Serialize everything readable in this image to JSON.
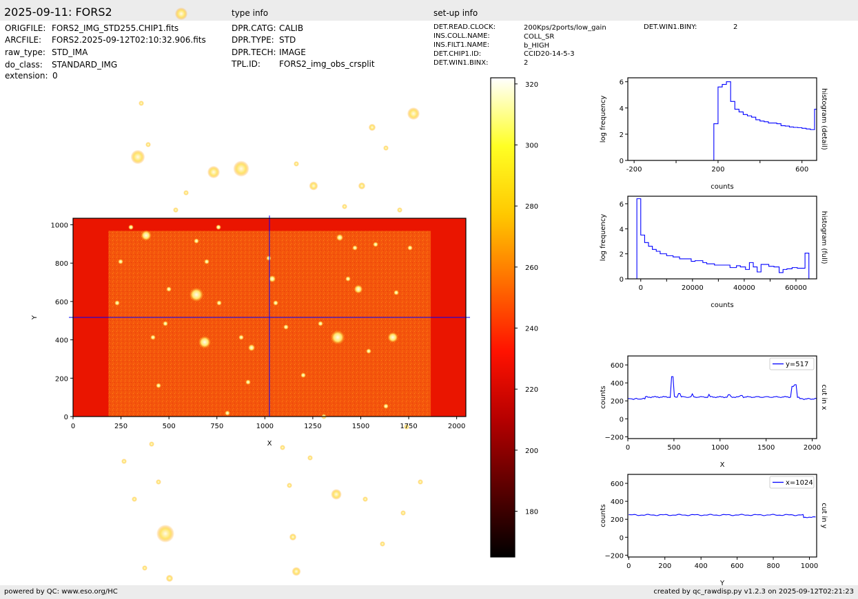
{
  "header": {
    "title": "2025-09-11: FORS2",
    "type_info_heading": "type info",
    "setup_info_heading": "set-up info"
  },
  "file_info": [
    {
      "key": "ORIGFILE:",
      "value": "FORS2_IMG_STD255.CHIP1.fits"
    },
    {
      "key": "ARCFILE:",
      "value": "FORS2.2025-09-12T02:10:32.906.fits"
    },
    {
      "key": "raw_type:",
      "value": "STD_IMA"
    },
    {
      "key": "do_class:",
      "value": "STANDARD_IMG"
    },
    {
      "key": "extension:",
      "value": "0"
    }
  ],
  "type_info": [
    {
      "key": "DPR.CATG:",
      "value": "CALIB"
    },
    {
      "key": "DPR.TYPE:",
      "value": "STD"
    },
    {
      "key": "DPR.TECH:",
      "value": "IMAGE"
    },
    {
      "key": "TPL.ID:",
      "value": "FORS2_img_obs_crsplit"
    }
  ],
  "setup_info": [
    {
      "key": "DET.READ.CLOCK:",
      "value": "200Kps/2ports/low_gain"
    },
    {
      "key": "INS.COLL.NAME:",
      "value": "COLL_SR"
    },
    {
      "key": "INS.FILT1.NAME:",
      "value": "b_HIGH"
    },
    {
      "key": "DET.CHIP1.ID:",
      "value": "CCID20-14-5-3"
    },
    {
      "key": "DET.WIN1.BINX:",
      "value": "2"
    }
  ],
  "setup_info_extra": [
    {
      "key": "DET.WIN1.BINY:",
      "value": "2"
    }
  ],
  "footer": {
    "left": "powered by QC: www.eso.org/HC",
    "right": "created by qc_rawdisp.py v1.2.3 on 2025-09-12T02:21:23"
  },
  "colors": {
    "plot_line": "#0000ff",
    "band": "#ececec",
    "overscan": "#ea1500",
    "sky": "#f4550c",
    "star": "#fffbe8"
  },
  "chart_data": [
    {
      "id": "image",
      "type": "heatmap",
      "xlabel": "X",
      "ylabel": "Y",
      "xlim": [
        0,
        2048
      ],
      "ylim": [
        0,
        1034
      ],
      "xticks": [
        0,
        250,
        500,
        750,
        1000,
        1250,
        1500,
        1750,
        2000
      ],
      "yticks": [
        0,
        200,
        400,
        600,
        800,
        1000
      ],
      "illuminated_region": {
        "x": [
          185,
          1865
        ],
        "y": [
          0,
          968
        ]
      },
      "cut_x": 1024,
      "cut_y": 517,
      "stars": [
        [
          240,
          775,
          10
        ],
        [
          246,
          840,
          4
        ],
        [
          297,
          497,
          7
        ],
        [
          285,
          428,
          8
        ],
        [
          490,
          490,
          8
        ],
        [
          212,
          342,
          6
        ],
        [
          200,
          228,
          8
        ],
        [
          350,
          245,
          9
        ],
        [
          310,
          250,
          7
        ],
        [
          263,
          20,
          7
        ],
        [
          395,
          405,
          4
        ],
        [
          430,
          830,
          5
        ],
        [
          425,
          780,
          4
        ],
        [
          455,
          270,
          5
        ],
        [
          430,
          238,
          3
        ],
        [
          525,
          270,
          4
        ],
        [
          540,
          185,
          4
        ],
        [
          493,
          345,
          4
        ],
        [
          520,
          420,
          5
        ],
        [
          600,
          165,
          7
        ],
        [
          570,
          490,
          6
        ],
        [
          488,
          718,
          6
        ],
        [
          575,
          425,
          3
        ],
        [
          415,
          475,
          3
        ],
        [
          410,
          650,
          3
        ],
        [
          400,
          440,
          3
        ],
        [
          390,
          375,
          3
        ],
        [
          360,
          555,
          3
        ],
        [
          350,
          490,
          3
        ],
        [
          330,
          600,
          3
        ],
        [
          317,
          330,
          3
        ],
        [
          318,
          440,
          3
        ],
        [
          300,
          380,
          3
        ],
        [
          285,
          350,
          3
        ],
        [
          270,
          280,
          3
        ],
        [
          255,
          305,
          3
        ],
        [
          245,
          420,
          3
        ],
        [
          240,
          470,
          3
        ],
        [
          230,
          560,
          3
        ],
        [
          222,
          490,
          3
        ],
        [
          215,
          210,
          3
        ],
        [
          205,
          150,
          3
        ],
        [
          190,
          330,
          3
        ],
        [
          175,
          380,
          3
        ],
        [
          170,
          440,
          3
        ],
        [
          230,
          700,
          3
        ],
        [
          220,
          645,
          3
        ],
        [
          195,
          725,
          3
        ],
        [
          180,
          670,
          3
        ],
        [
          210,
          825,
          3
        ],
        [
          365,
          505,
          4
        ],
        [
          440,
          545,
          3
        ],
        [
          465,
          470,
          3
        ],
        [
          505,
          405,
          3
        ],
        [
          515,
          360,
          3
        ],
        [
          535,
          510,
          3
        ],
        [
          560,
          590,
          3
        ],
        [
          590,
          620,
          3
        ],
        [
          610,
          700,
          3
        ],
        [
          530,
          725,
          3
        ],
        [
          555,
          790,
          3
        ],
        [
          585,
          745,
          3
        ],
        [
          595,
          360,
          3
        ],
        [
          580,
          305,
          3
        ],
        [
          560,
          215,
          3
        ],
        [
          545,
          355,
          3
        ],
        [
          500,
          300,
          3
        ],
        [
          470,
          605,
          3
        ],
        [
          450,
          665,
          3
        ],
        [
          420,
          705,
          3
        ]
      ]
    },
    {
      "id": "colorbar",
      "type": "heatmap",
      "ylim": [
        165,
        322
      ],
      "ticks": [
        180,
        200,
        220,
        240,
        260,
        280,
        300,
        320
      ],
      "colormap": [
        "#000000",
        "#5a0000",
        "#b50000",
        "#ff1200",
        "#ff6d00",
        "#ffc800",
        "#ffff24",
        "#ffffff"
      ]
    },
    {
      "id": "hist_detail",
      "type": "line",
      "xlabel": "counts",
      "ylabel": "log frequency",
      "side_label": "histogram (detail)",
      "xlim": [
        -230,
        670
      ],
      "ylim": [
        0,
        6.3
      ],
      "xticks": [
        -200,
        200,
        600
      ],
      "xtick_labels": [
        "-200",
        "200",
        "600"
      ],
      "minor_xticks": [
        0,
        400
      ],
      "yticks": [
        0,
        2,
        4,
        6
      ],
      "x": [
        -230,
        180,
        180,
        200,
        200,
        220,
        220,
        240,
        240,
        260,
        260,
        280,
        280,
        300,
        300,
        320,
        320,
        340,
        340,
        360,
        360,
        380,
        380,
        400,
        400,
        420,
        420,
        440,
        440,
        460,
        460,
        480,
        480,
        500,
        500,
        520,
        520,
        540,
        540,
        560,
        560,
        580,
        580,
        600,
        600,
        620,
        620,
        640,
        640,
        660,
        660,
        670
      ],
      "y": [
        0,
        0,
        2.8,
        2.8,
        5.6,
        5.6,
        5.8,
        5.8,
        6.0,
        6.0,
        4.5,
        4.5,
        3.9,
        3.9,
        3.7,
        3.7,
        3.5,
        3.5,
        3.4,
        3.4,
        3.3,
        3.3,
        3.1,
        3.1,
        3.0,
        3.0,
        2.95,
        2.95,
        2.85,
        2.85,
        2.85,
        2.85,
        2.8,
        2.8,
        2.65,
        2.65,
        2.62,
        2.62,
        2.55,
        2.55,
        2.52,
        2.52,
        2.5,
        2.5,
        2.45,
        2.45,
        2.4,
        2.4,
        2.35,
        2.35,
        3.9,
        3.9
      ]
    },
    {
      "id": "hist_full",
      "type": "line",
      "xlabel": "counts",
      "ylabel": "log frequency",
      "side_label": "histogram (full)",
      "xlim": [
        -5000,
        68000
      ],
      "ylim": [
        0,
        6.6
      ],
      "xticks": [
        0,
        20000,
        40000,
        60000
      ],
      "minor_xticks": [
        10000,
        30000,
        50000
      ],
      "yticks": [
        0,
        2,
        4,
        6
      ],
      "x": [
        -1500,
        -1500,
        0,
        0,
        1500,
        1500,
        3000,
        3000,
        4500,
        4500,
        6000,
        6000,
        7500,
        7500,
        10000,
        10000,
        12500,
        12500,
        15000,
        15000,
        19500,
        19500,
        21000,
        21000,
        24000,
        24000,
        25500,
        25500,
        28500,
        28500,
        34500,
        34500,
        37000,
        37000,
        38500,
        38500,
        40500,
        40500,
        42000,
        42000,
        43500,
        43500,
        45000,
        45000,
        46500,
        46500,
        49500,
        49500,
        51500,
        51500,
        53500,
        53500,
        55000,
        55000,
        56500,
        56500,
        58500,
        58500,
        60500,
        60500,
        63500,
        63500,
        65000,
        65000,
        66500,
        66500
      ],
      "y": [
        0,
        6.4,
        6.4,
        3.5,
        3.5,
        2.9,
        2.9,
        2.6,
        2.6,
        2.35,
        2.35,
        2.2,
        2.2,
        2.0,
        2.0,
        1.85,
        1.85,
        1.75,
        1.75,
        1.6,
        1.6,
        1.4,
        1.4,
        1.45,
        1.45,
        1.3,
        1.3,
        1.2,
        1.2,
        1.1,
        1.1,
        0.9,
        0.9,
        1.05,
        1.05,
        0.95,
        0.95,
        0.75,
        0.75,
        1.3,
        1.3,
        0.95,
        0.95,
        0.55,
        0.55,
        1.15,
        1.15,
        1.0,
        1.0,
        0.95,
        0.95,
        0.5,
        0.5,
        0.75,
        0.75,
        0.8,
        0.8,
        0.9,
        0.9,
        0.85,
        0.85,
        2.05,
        2.05,
        0.0,
        0.0,
        0.0
      ]
    },
    {
      "id": "cut_x",
      "type": "line",
      "xlabel": "X",
      "ylabel": "counts",
      "side_label": "cut in x",
      "legend": "y=517",
      "legend_loc": "top-right",
      "xlim": [
        0,
        2048
      ],
      "ylim": [
        -220,
        700
      ],
      "xticks": [
        0,
        500,
        1000,
        1500,
        2000
      ],
      "yticks": [
        -200,
        0,
        200,
        400,
        600
      ],
      "baseline": [
        [
          0,
          222
        ],
        [
          185,
          222
        ],
        [
          190,
          243
        ],
        [
          1855,
          243
        ],
        [
          1865,
          222
        ],
        [
          2048,
          222
        ]
      ],
      "spikes": [
        [
          480,
          470
        ],
        [
          555,
          282
        ],
        [
          700,
          278
        ],
        [
          880,
          272
        ],
        [
          1100,
          268
        ],
        [
          1230,
          260
        ],
        [
          1790,
          360
        ],
        [
          1820,
          380
        ]
      ]
    },
    {
      "id": "cut_y",
      "type": "line",
      "xlabel": "Y",
      "ylabel": "counts",
      "side_label": "cut in y",
      "legend": "x=1024",
      "legend_loc": "top-right",
      "xlim": [
        -5,
        1040
      ],
      "ylim": [
        -220,
        700
      ],
      "xticks": [
        0,
        200,
        400,
        600,
        800,
        1000
      ],
      "yticks": [
        -200,
        0,
        200,
        400,
        600
      ],
      "baseline": [
        [
          0,
          248
        ],
        [
          965,
          248
        ],
        [
          968,
          225
        ],
        [
          1034,
          225
        ]
      ],
      "spikes": []
    }
  ]
}
